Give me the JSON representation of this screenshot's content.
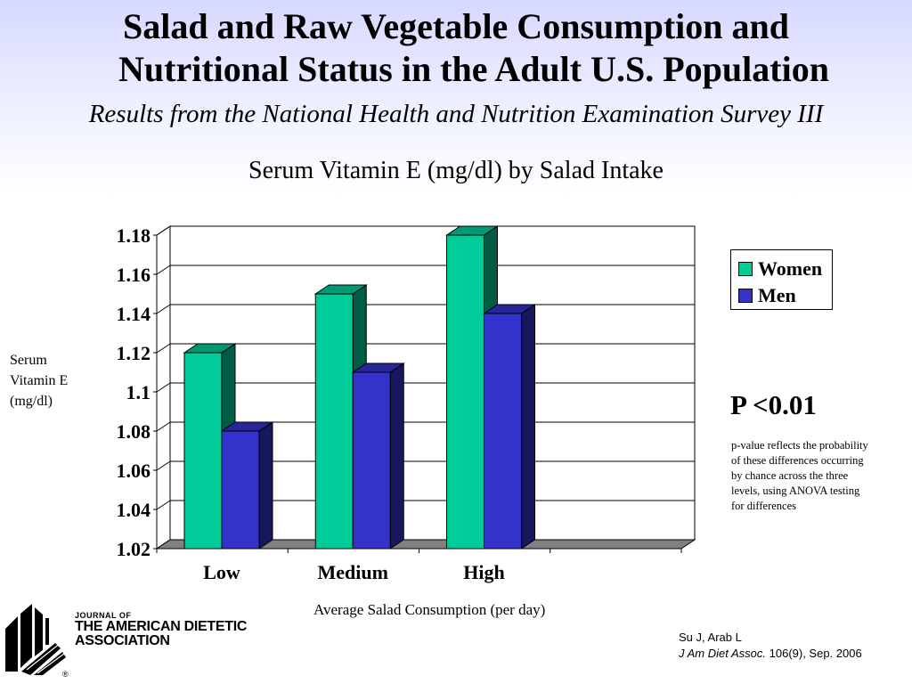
{
  "slide": {
    "title_line1": "Salad and Raw Vegetable Consumption and",
    "title_line2": "Nutritional Status in the Adult U.S. Population",
    "subtitle": "Results from the National Health and Nutrition Examination Survey III",
    "p_value": "P <0.01",
    "p_note": "p-value reflects the probability of these differences occurring by chance across the three levels, using ANOVA testing for differences"
  },
  "chart_data": {
    "type": "bar",
    "title": "Serum Vitamin E (mg/dl) by Salad Intake",
    "xlabel": "Average Salad Consumption (per day)",
    "ylabel": "Serum Vitamin E (mg/dl)",
    "categories": [
      "Low",
      "Medium",
      "High"
    ],
    "series": [
      {
        "name": "Women",
        "values": [
          1.12,
          1.15,
          1.18
        ],
        "color": "#00cc99"
      },
      {
        "name": "Men",
        "values": [
          1.08,
          1.11,
          1.14
        ],
        "color": "#3333cc"
      }
    ],
    "ylim": [
      1.02,
      1.18
    ],
    "yticks": [
      "1.02",
      "1.04",
      "1.06",
      "1.08",
      "1.1",
      "1.12",
      "1.14",
      "1.16",
      "1.18"
    ],
    "grid": true,
    "legend_position": "right",
    "three_d": true
  },
  "journal": {
    "line1": "JOURNAL OF",
    "line2": "THE AMERICAN DIETETIC",
    "line3": "ASSOCIATION",
    "registered_mark": "®"
  },
  "citation": {
    "authors": "Su J, Arab L",
    "journal_abbrev": "J Am Diet Assoc.",
    "details": " 106(9), Sep. 2006"
  }
}
